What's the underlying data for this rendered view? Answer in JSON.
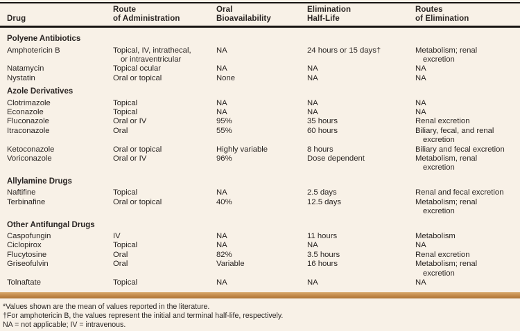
{
  "colors": {
    "background": "#f8f1e7",
    "text": "#2a2523",
    "rule": "#171412",
    "divider_bar": "#c68e4f"
  },
  "table": {
    "headers": [
      {
        "lines": [
          "Drug"
        ]
      },
      {
        "lines": [
          "Route",
          "of Administration"
        ]
      },
      {
        "lines": [
          "Oral",
          "Bioavailability"
        ]
      },
      {
        "lines": [
          "Elimination",
          "Half-Life"
        ]
      },
      {
        "lines": [
          "Routes",
          "of Elimination"
        ]
      }
    ],
    "rows": [
      {
        "type": "section",
        "label": "Polyene Antibiotics"
      },
      {
        "type": "drug",
        "cells": [
          "Amphotericin B",
          "Topical, IV, intrathecal,\nor intraventricular",
          "NA",
          "24 hours or 15 days†",
          "Metabolism; renal\nexcretion"
        ]
      },
      {
        "type": "drug",
        "cells": [
          "Natamycin",
          "Topical ocular",
          "NA",
          "NA",
          "NA"
        ]
      },
      {
        "type": "drug",
        "cells": [
          "Nystatin",
          "Oral or topical",
          "None",
          "NA",
          "NA"
        ]
      },
      {
        "type": "section",
        "label": "Azole Derivatives"
      },
      {
        "type": "drug",
        "cells": [
          "Clotrimazole",
          "Topical",
          "NA",
          "NA",
          "NA"
        ]
      },
      {
        "type": "drug",
        "cells": [
          "Econazole",
          "Topical",
          "NA",
          "NA",
          "NA"
        ]
      },
      {
        "type": "drug",
        "cells": [
          "Fluconazole",
          "Oral or IV",
          "95%",
          "35 hours",
          "Renal excretion"
        ]
      },
      {
        "type": "drug",
        "cells": [
          "Itraconazole",
          "Oral",
          "55%",
          "60 hours",
          "Biliary, fecal, and renal\nexcretion"
        ]
      },
      {
        "type": "drug",
        "cells": [
          "Ketoconazole",
          "Oral or topical",
          "Highly variable",
          "8 hours",
          "Biliary and fecal excretion"
        ]
      },
      {
        "type": "drug",
        "cells": [
          "Voriconazole",
          "Oral or IV",
          "96%",
          "Dose dependent",
          "Metabolism, renal\nexcretion"
        ]
      },
      {
        "type": "section",
        "label": "Allylamine Drugs"
      },
      {
        "type": "drug",
        "cells": [
          "Naftifine",
          "Topical",
          "NA",
          "2.5 days",
          "Renal and fecal excretion"
        ]
      },
      {
        "type": "drug",
        "cells": [
          "Terbinafine",
          "Oral or topical",
          "40%",
          "12.5 days",
          "Metabolism; renal\nexcretion"
        ]
      },
      {
        "type": "section",
        "label": "Other Antifungal Drugs"
      },
      {
        "type": "drug",
        "cells": [
          "Caspofungin",
          "IV",
          "NA",
          "11 hours",
          "Metabolism"
        ]
      },
      {
        "type": "drug",
        "cells": [
          "Ciclopirox",
          "Topical",
          "NA",
          "NA",
          "NA"
        ]
      },
      {
        "type": "drug",
        "cells": [
          "Flucytosine",
          "Oral",
          "82%",
          "3.5 hours",
          "Renal excretion"
        ]
      },
      {
        "type": "drug",
        "cells": [
          "Griseofulvin",
          "Oral",
          "Variable",
          "16 hours",
          "Metabolism; renal\nexcretion"
        ]
      },
      {
        "type": "drug",
        "cells": [
          "Tolnaftate",
          "Topical",
          "NA",
          "NA",
          "NA"
        ]
      }
    ]
  },
  "footnotes": [
    "*Values shown are the mean of values reported in the literature.",
    "†For amphotericin B, the values represent the initial and terminal half-life, respectively.",
    "NA = not applicable; IV = intravenous."
  ]
}
